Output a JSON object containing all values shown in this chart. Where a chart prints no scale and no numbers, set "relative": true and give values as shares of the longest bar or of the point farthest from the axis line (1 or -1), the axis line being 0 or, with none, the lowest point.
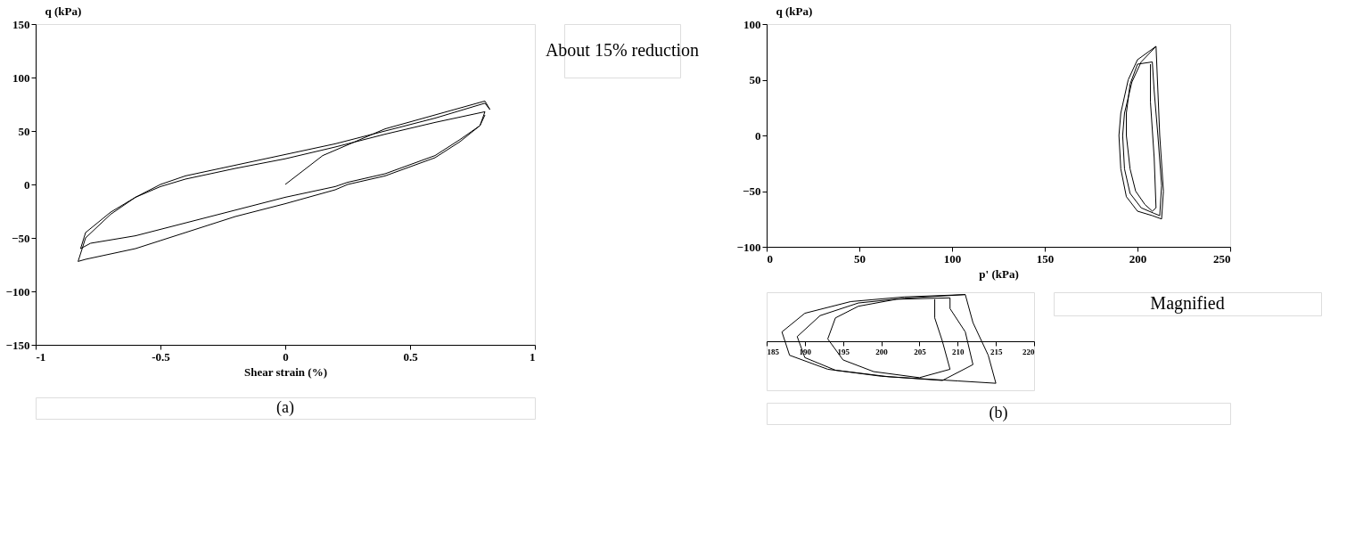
{
  "chart_data": [
    {
      "type": "line",
      "xlabel": "Shear strain (%)",
      "ylabel": "q (kPa)",
      "xlim": [
        -1,
        1
      ],
      "xticks": [
        -1,
        -0.5,
        0,
        0.5,
        1
      ],
      "ylim": [
        -150,
        150
      ],
      "yticks": [
        -150,
        -100,
        -50,
        0,
        50,
        100,
        150
      ],
      "grid": false,
      "legend": false,
      "marker": "none",
      "line_style": "solid",
      "annotations": [
        "About 15% reduction",
        "(a)"
      ],
      "series": [
        {
          "color": "#000000",
          "x": [
            0,
            0.15,
            0.4,
            0.6,
            0.8,
            0.82,
            0.8,
            0.6,
            0.4,
            0.2,
            0,
            -0.2,
            -0.4,
            -0.5,
            -0.6,
            -0.7,
            -0.8,
            -0.83,
            -0.8,
            -0.6,
            -0.4,
            -0.2,
            0,
            0.2,
            0.25,
            0.4,
            0.6,
            0.7,
            0.78,
            0.8,
            0.6,
            0.4,
            0.2,
            0,
            -0.2,
            -0.4,
            -0.5,
            -0.6,
            -0.7,
            -0.8,
            -0.82,
            -0.78,
            -0.6,
            -0.4,
            -0.2,
            0,
            0.2,
            0.25,
            0.4,
            0.6,
            0.7,
            0.78,
            0.8
          ],
          "values": [
            0,
            27,
            52,
            65,
            78,
            70,
            76,
            62,
            50,
            38,
            28,
            18,
            8,
            0,
            -12,
            -28,
            -50,
            -72,
            -70,
            -60,
            -45,
            -30,
            -18,
            -5,
            0,
            8,
            25,
            40,
            55,
            68,
            58,
            47,
            35,
            24,
            15,
            5,
            -2,
            -12,
            -26,
            -45,
            -60,
            -55,
            -48,
            -36,
            -24,
            -12,
            -2,
            2,
            10,
            27,
            42,
            55,
            65
          ]
        }
      ]
    },
    {
      "type": "line",
      "xlabel": "p' (kPa)",
      "ylabel": "q (kPa)",
      "xlim": [
        0,
        250
      ],
      "xticks": [
        0,
        50,
        100,
        150,
        200,
        250
      ],
      "ylim": [
        -100,
        100
      ],
      "yticks": [
        -100,
        -50,
        0,
        50,
        100
      ],
      "grid": false,
      "legend": false,
      "marker": "none",
      "line_style": "solid",
      "annotations": [
        "Magnified",
        "(b)"
      ],
      "series": [
        {
          "color": "#000000",
          "x": [
            210,
            200,
            195,
            191,
            190,
            191,
            194,
            200,
            208,
            213,
            214,
            212,
            211,
            210,
            202,
            197,
            193,
            192,
            193,
            196,
            202,
            209,
            212,
            213,
            211,
            209,
            208,
            200,
            196,
            194,
            194,
            196,
            199,
            204,
            208,
            210,
            209,
            207,
            207
          ],
          "values": [
            80,
            68,
            50,
            20,
            0,
            -30,
            -55,
            -68,
            -72,
            -75,
            -50,
            0,
            40,
            80,
            66,
            48,
            20,
            0,
            -30,
            -52,
            -65,
            -70,
            -72,
            -45,
            0,
            40,
            66,
            64,
            46,
            20,
            0,
            -30,
            -50,
            -62,
            -68,
            -65,
            -20,
            30,
            64
          ]
        }
      ]
    },
    {
      "type": "line",
      "relative": true,
      "xlim": [
        185,
        220
      ],
      "xticks": [
        185,
        190,
        195,
        200,
        205,
        210,
        215,
        220
      ],
      "grid": false,
      "legend": false,
      "marker": "none",
      "line_style": "solid",
      "series": [
        {
          "color": "#000000",
          "x": [
            211,
            203,
            196,
            190,
            187,
            188,
            193,
            200,
            210,
            215,
            214,
            212,
            211,
            203,
            197,
            192,
            189,
            190,
            194,
            201,
            208,
            212,
            211,
            209,
            209,
            202,
            197,
            194,
            193,
            195,
            199,
            205,
            209,
            208,
            207,
            207
          ],
          "values": [
            1,
            0.95,
            0.85,
            0.6,
            0.2,
            -0.3,
            -0.6,
            -0.75,
            -0.85,
            -0.9,
            -0.3,
            0.4,
            1,
            0.92,
            0.82,
            0.55,
            0.1,
            -0.35,
            -0.62,
            -0.76,
            -0.84,
            -0.5,
            0.2,
            0.7,
            0.93,
            0.9,
            0.75,
            0.5,
            0.05,
            -0.4,
            -0.65,
            -0.78,
            -0.6,
            0,
            0.5,
            0.9
          ]
        }
      ]
    }
  ]
}
